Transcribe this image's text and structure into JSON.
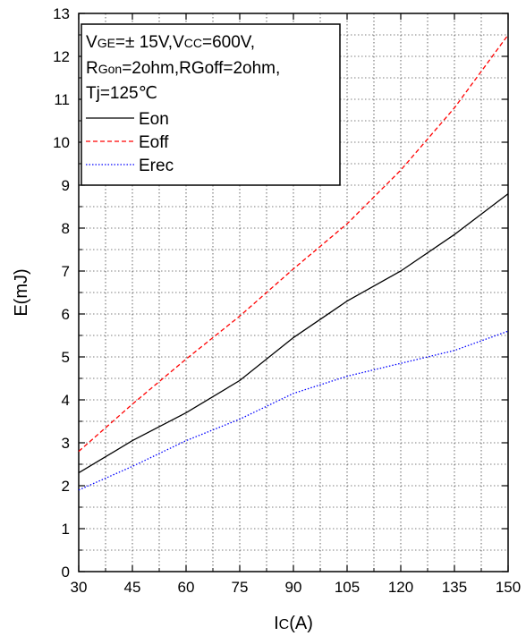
{
  "chart_data": {
    "type": "line",
    "xlabel_main": "I",
    "xlabel_sub": "C",
    "xlabel_unit": "(A)",
    "ylabel": "E(mJ)",
    "xlim": [
      30,
      150
    ],
    "ylim": [
      0,
      13
    ],
    "x_ticks": [
      30,
      45,
      60,
      75,
      90,
      105,
      120,
      135,
      150
    ],
    "y_ticks": [
      0,
      1,
      2,
      3,
      4,
      5,
      6,
      7,
      8,
      9,
      10,
      11,
      12,
      13
    ],
    "grid": true,
    "legend_position": "top-left",
    "conditions": {
      "line1": {
        "v1": "V",
        "v1_sub": "GE",
        "v1_rest": "=± 15V,",
        "v2": "V",
        "v2_sub": "CC",
        "v2_rest": "=600V,"
      },
      "line2": {
        "r1": "R",
        "r1_sub": "Gon",
        "r1_rest": "=2ohm,RGoff=2ohm,"
      },
      "line3": "Tj=125℃"
    },
    "series": [
      {
        "name": "Eon",
        "color": "#000000",
        "dash": "solid",
        "x": [
          30,
          45,
          60,
          75,
          90,
          105,
          120,
          135,
          150
        ],
        "y": [
          2.3,
          3.05,
          3.7,
          4.45,
          5.45,
          6.3,
          7.0,
          7.85,
          8.8
        ]
      },
      {
        "name": "Eoff",
        "color": "#ff0000",
        "dash": "dashed",
        "x": [
          30,
          45,
          60,
          75,
          90,
          105,
          120,
          135,
          150
        ],
        "y": [
          2.8,
          3.9,
          4.95,
          5.95,
          7.05,
          8.1,
          9.35,
          10.8,
          12.5
        ]
      },
      {
        "name": "Erec",
        "color": "#0000ff",
        "dash": "dotted",
        "x": [
          30,
          45,
          60,
          75,
          90,
          105,
          120,
          135,
          150
        ],
        "y": [
          1.9,
          2.45,
          3.05,
          3.55,
          4.15,
          4.55,
          4.85,
          5.15,
          5.6
        ]
      }
    ]
  }
}
